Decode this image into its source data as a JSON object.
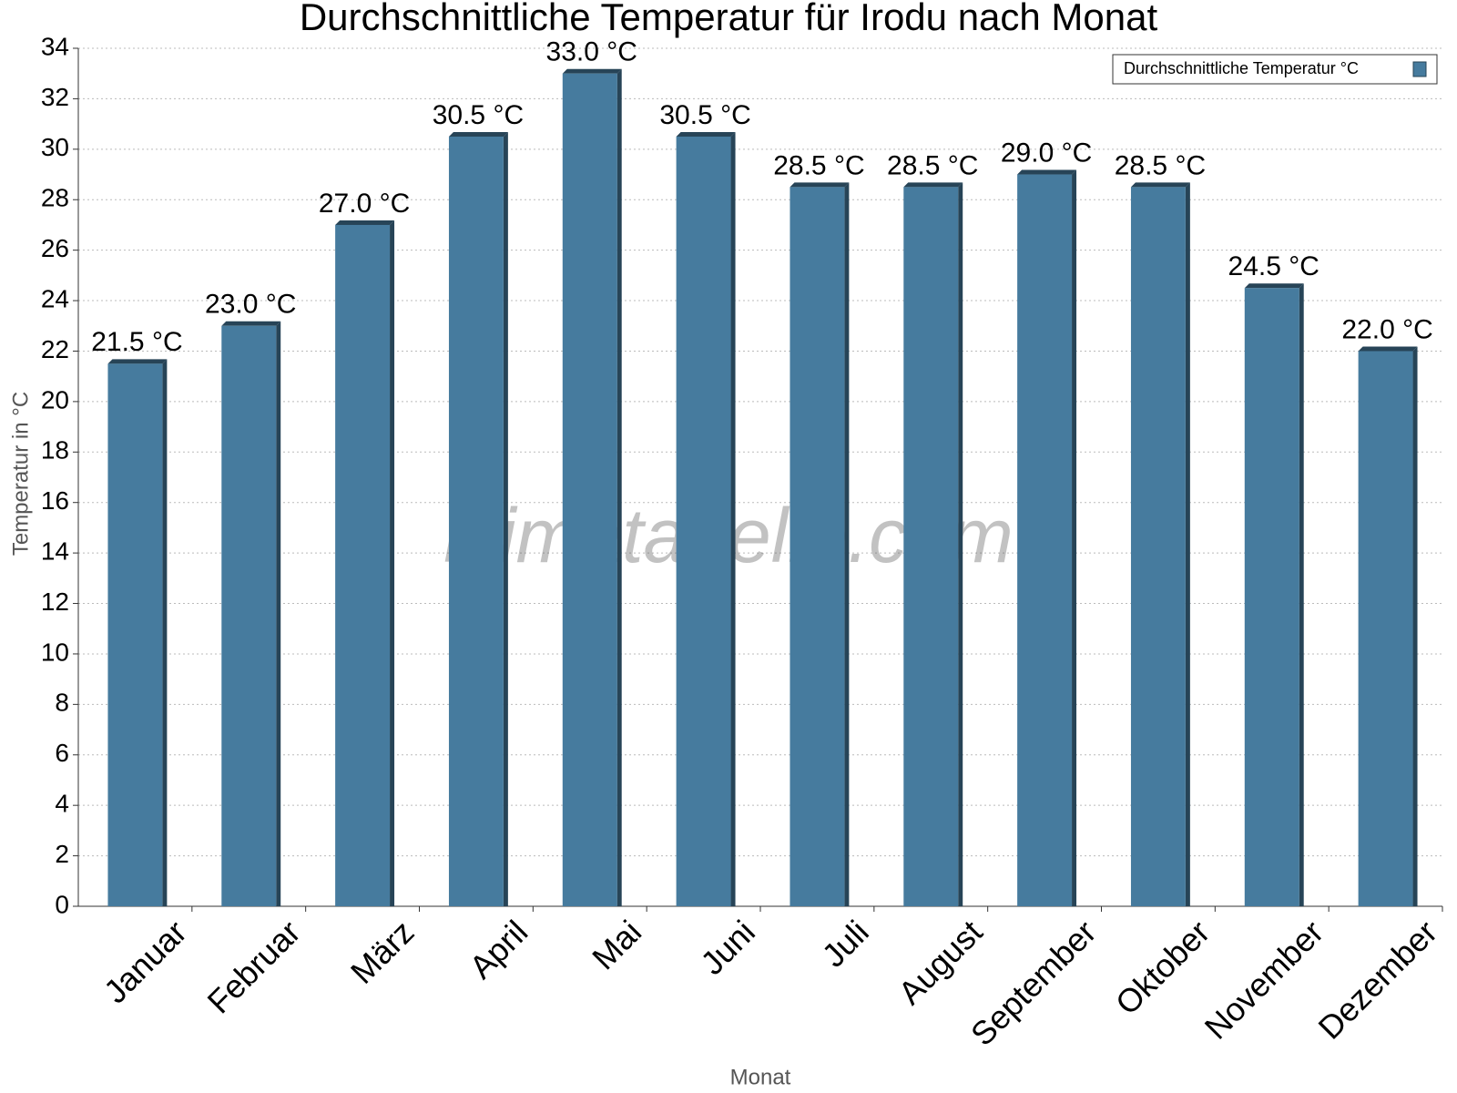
{
  "chart_data": {
    "type": "bar",
    "title": "Durchschnittliche Temperatur für Irodu nach Monat",
    "x_label": "Monat",
    "y_label": "Temperatur in °C",
    "watermark": "klimatabelle.com",
    "categories": [
      "Januar",
      "Februar",
      "März",
      "April",
      "Mai",
      "Juni",
      "Juli",
      "August",
      "September",
      "Oktober",
      "November",
      "Dezember"
    ],
    "series": [
      {
        "name": "Durchschnittliche Temperatur °C",
        "color": "#467b9e",
        "values": [
          21.5,
          23.0,
          27.0,
          30.5,
          33.0,
          30.5,
          28.5,
          28.5,
          29.0,
          28.5,
          24.5,
          22.0
        ],
        "value_labels": [
          "21.5 °C",
          "23.0 °C",
          "27.0 °C",
          "30.5 °C",
          "33.0 °C",
          "30.5 °C",
          "28.5 °C",
          "28.5 °C",
          "29.0 °C",
          "28.5 °C",
          "24.5 °C",
          "22.0 °C"
        ]
      }
    ],
    "ylim": [
      0,
      34
    ],
    "yticks": [
      0,
      2,
      4,
      6,
      8,
      10,
      12,
      14,
      16,
      18,
      20,
      22,
      24,
      26,
      28,
      30,
      32,
      34
    ],
    "grid": true,
    "legend": "top-right"
  }
}
